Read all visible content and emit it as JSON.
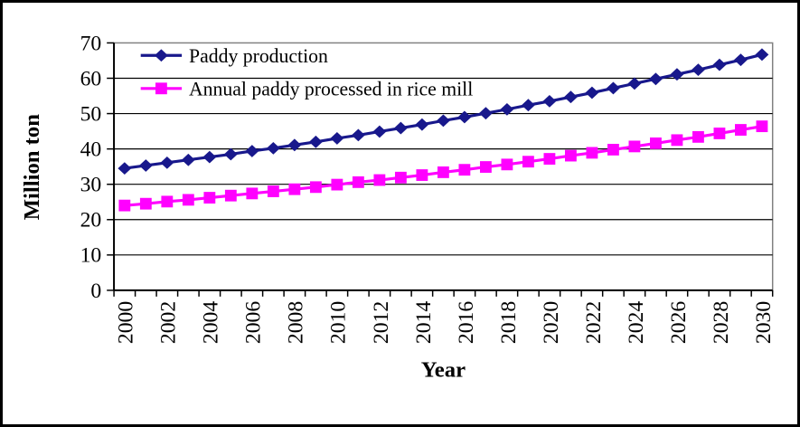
{
  "chart_data": {
    "type": "line",
    "title": "",
    "xlabel": "Year",
    "ylabel": "Million ton",
    "ylim": [
      0,
      70
    ],
    "ytick_step": 10,
    "grid": "horizontal",
    "legend_position": "top-left-inside",
    "x": [
      2000,
      2001,
      2002,
      2003,
      2004,
      2005,
      2006,
      2007,
      2008,
      2009,
      2010,
      2011,
      2012,
      2013,
      2014,
      2015,
      2016,
      2017,
      2018,
      2019,
      2020,
      2021,
      2022,
      2023,
      2024,
      2025,
      2026,
      2027,
      2028,
      2029,
      2030
    ],
    "x_tick_labels": [
      "2000",
      "2002",
      "2004",
      "2006",
      "2008",
      "2010",
      "2012",
      "2014",
      "2016",
      "2018",
      "2020",
      "2022",
      "2024",
      "2026",
      "2028",
      "2030"
    ],
    "series": [
      {
        "name": "Paddy production",
        "color": "#18188c",
        "marker": "diamond",
        "values": [
          34.5,
          35.3,
          36.1,
          36.9,
          37.7,
          38.5,
          39.4,
          40.2,
          41.1,
          42.0,
          43.0,
          43.9,
          44.9,
          45.9,
          46.9,
          48.0,
          49.0,
          50.1,
          51.2,
          52.4,
          53.5,
          54.7,
          55.9,
          57.2,
          58.5,
          59.8,
          61.1,
          62.4,
          63.8,
          65.2,
          66.7
        ]
      },
      {
        "name": "Annual paddy processed in rice mill",
        "color": "#ff00ff",
        "marker": "square",
        "values": [
          24.0,
          24.5,
          25.1,
          25.6,
          26.2,
          26.8,
          27.4,
          28.0,
          28.6,
          29.2,
          29.9,
          30.6,
          31.2,
          31.9,
          32.6,
          33.4,
          34.1,
          34.9,
          35.6,
          36.4,
          37.2,
          38.1,
          38.9,
          39.8,
          40.7,
          41.6,
          42.5,
          43.4,
          44.4,
          45.4,
          46.4
        ]
      }
    ],
    "colors": {
      "plot_border": "#808080",
      "gridline": "#000000",
      "axis": "#000000",
      "text": "#000000"
    }
  }
}
